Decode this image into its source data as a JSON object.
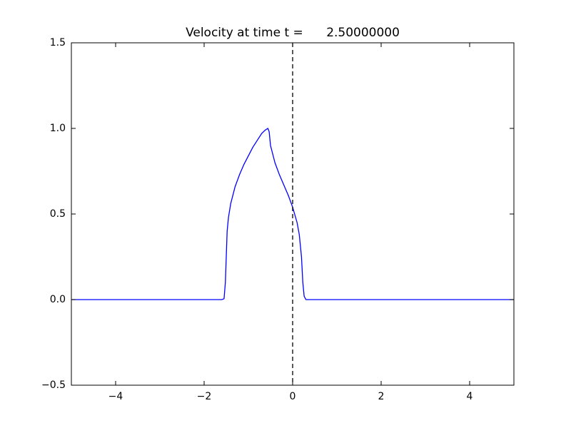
{
  "chart_data": {
    "type": "line",
    "title": "Velocity at time t =      2.50000000",
    "x": [
      -5,
      -1.6,
      -1.55,
      -1.52,
      -1.5,
      -1.48,
      -1.45,
      -1.4,
      -1.3,
      -1.2,
      -1.1,
      -1.0,
      -0.9,
      -0.8,
      -0.7,
      -0.62,
      -0.56,
      -0.53,
      -0.5,
      -0.45,
      -0.4,
      -0.3,
      -0.2,
      -0.1,
      0,
      0.1,
      0.15,
      0.2,
      0.23,
      0.26,
      0.3,
      0.35,
      5
    ],
    "series": [
      {
        "color": "#0000ff",
        "values": [
          0,
          0,
          0.005,
          0.1,
          0.25,
          0.4,
          0.48,
          0.56,
          0.66,
          0.73,
          0.79,
          0.84,
          0.89,
          0.93,
          0.97,
          0.99,
          1.0,
          0.98,
          0.9,
          0.85,
          0.8,
          0.73,
          0.67,
          0.61,
          0.54,
          0.45,
          0.38,
          0.25,
          0.1,
          0.02,
          0.0,
          0,
          0
        ]
      }
    ],
    "vline": 0,
    "xlim": [
      -5,
      5
    ],
    "xticks": [
      {
        "value": -4,
        "label": "−4"
      },
      {
        "value": -2,
        "label": "−2"
      },
      0,
      2,
      4
    ],
    "ylim": [
      -0.5,
      1.5
    ],
    "yticks": [
      {
        "value": -0.5,
        "label": "−0.5"
      },
      {
        "value": 0,
        "label": "0.0"
      },
      0.5,
      {
        "value": 1,
        "label": "1.0"
      },
      1.5
    ]
  }
}
